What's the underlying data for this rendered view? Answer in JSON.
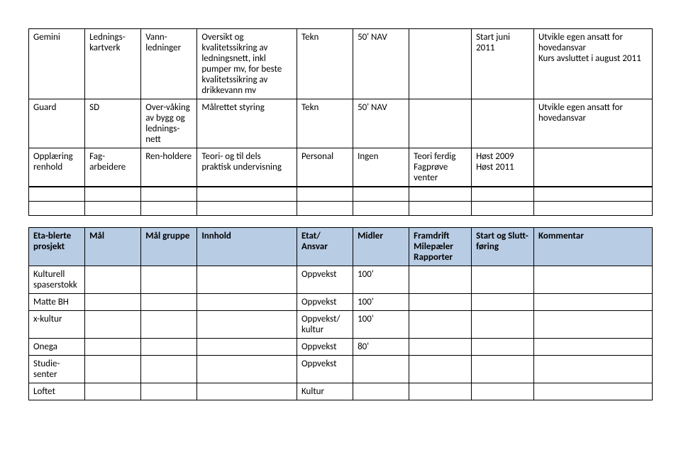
{
  "table1": {
    "colors": {
      "header_bg": "#b8cce4",
      "border": "#000000",
      "text": "#000000"
    },
    "rows": [
      {
        "c1": "Gemini",
        "c2": "Lednings-kartverk",
        "c3": "Vann-ledninger",
        "c4": "Oversikt og kvalitetssikring av ledningsnett, inkl pumper mv, for beste kvalitetssikring av drikkevann mv",
        "c5": "Tekn",
        "c6": "50' NAV",
        "c7": "",
        "c8": "Start juni 2011",
        "c9": "Utvikle egen ansatt for hovedansvar\nKurs avsluttet i august 2011"
      },
      {
        "c1": "Guard",
        "c2": "SD",
        "c3": "Over-våking av bygg og lednings-nett",
        "c4": "Målrettet styring",
        "c5": "Tekn",
        "c6": "50' NAV",
        "c7": "",
        "c8": "",
        "c9": "Utvikle egen ansatt for hovedansvar"
      },
      {
        "c1": "Opplæring renhold",
        "c2": "Fag-arbeidere",
        "c3": "Ren-holdere",
        "c4": "Teori- og til dels praktisk undervisning",
        "c5": "Personal",
        "c6": "Ingen",
        "c7": "Teori ferdig Fagprøve venter",
        "c8": "Høst 2009 Høst 2011",
        "c9": ""
      }
    ]
  },
  "table2": {
    "headers": {
      "h1": "Eta-blerte prosjekt",
      "h2": "Mål",
      "h3": "Mål gruppe",
      "h4": "Innhold",
      "h5": "Etat/ Ansvar",
      "h6": "Midler",
      "h7": "Framdrift Milepæler Rapporter",
      "h8": "Start og Slutt-føring",
      "h9": "Kommentar"
    },
    "rows": [
      {
        "c1": "Kulturell spaserstokk",
        "c2": "",
        "c3": "",
        "c4": "",
        "c5": "Oppvekst",
        "c6": "100'",
        "c7": "",
        "c8": "",
        "c9": ""
      },
      {
        "c1": "Matte BH",
        "c2": "",
        "c3": "",
        "c4": "",
        "c5": "Oppvekst",
        "c6": "100'",
        "c7": "",
        "c8": "",
        "c9": ""
      },
      {
        "c1": "x-kultur",
        "c2": "",
        "c3": "",
        "c4": "",
        "c5": "Oppvekst/ kultur",
        "c6": "100'",
        "c7": "",
        "c8": "",
        "c9": ""
      },
      {
        "c1": "Onega",
        "c2": "",
        "c3": "",
        "c4": "",
        "c5": "Oppvekst",
        "c6": "80'",
        "c7": "",
        "c8": "",
        "c9": ""
      },
      {
        "c1": "Studie-senter",
        "c2": "",
        "c3": "",
        "c4": "",
        "c5": "Oppvekst",
        "c6": "",
        "c7": "",
        "c8": "",
        "c9": ""
      },
      {
        "c1": "Loftet",
        "c2": "",
        "c3": "",
        "c4": "",
        "c5": "Kultur",
        "c6": "",
        "c7": "",
        "c8": "",
        "c9": ""
      }
    ]
  }
}
